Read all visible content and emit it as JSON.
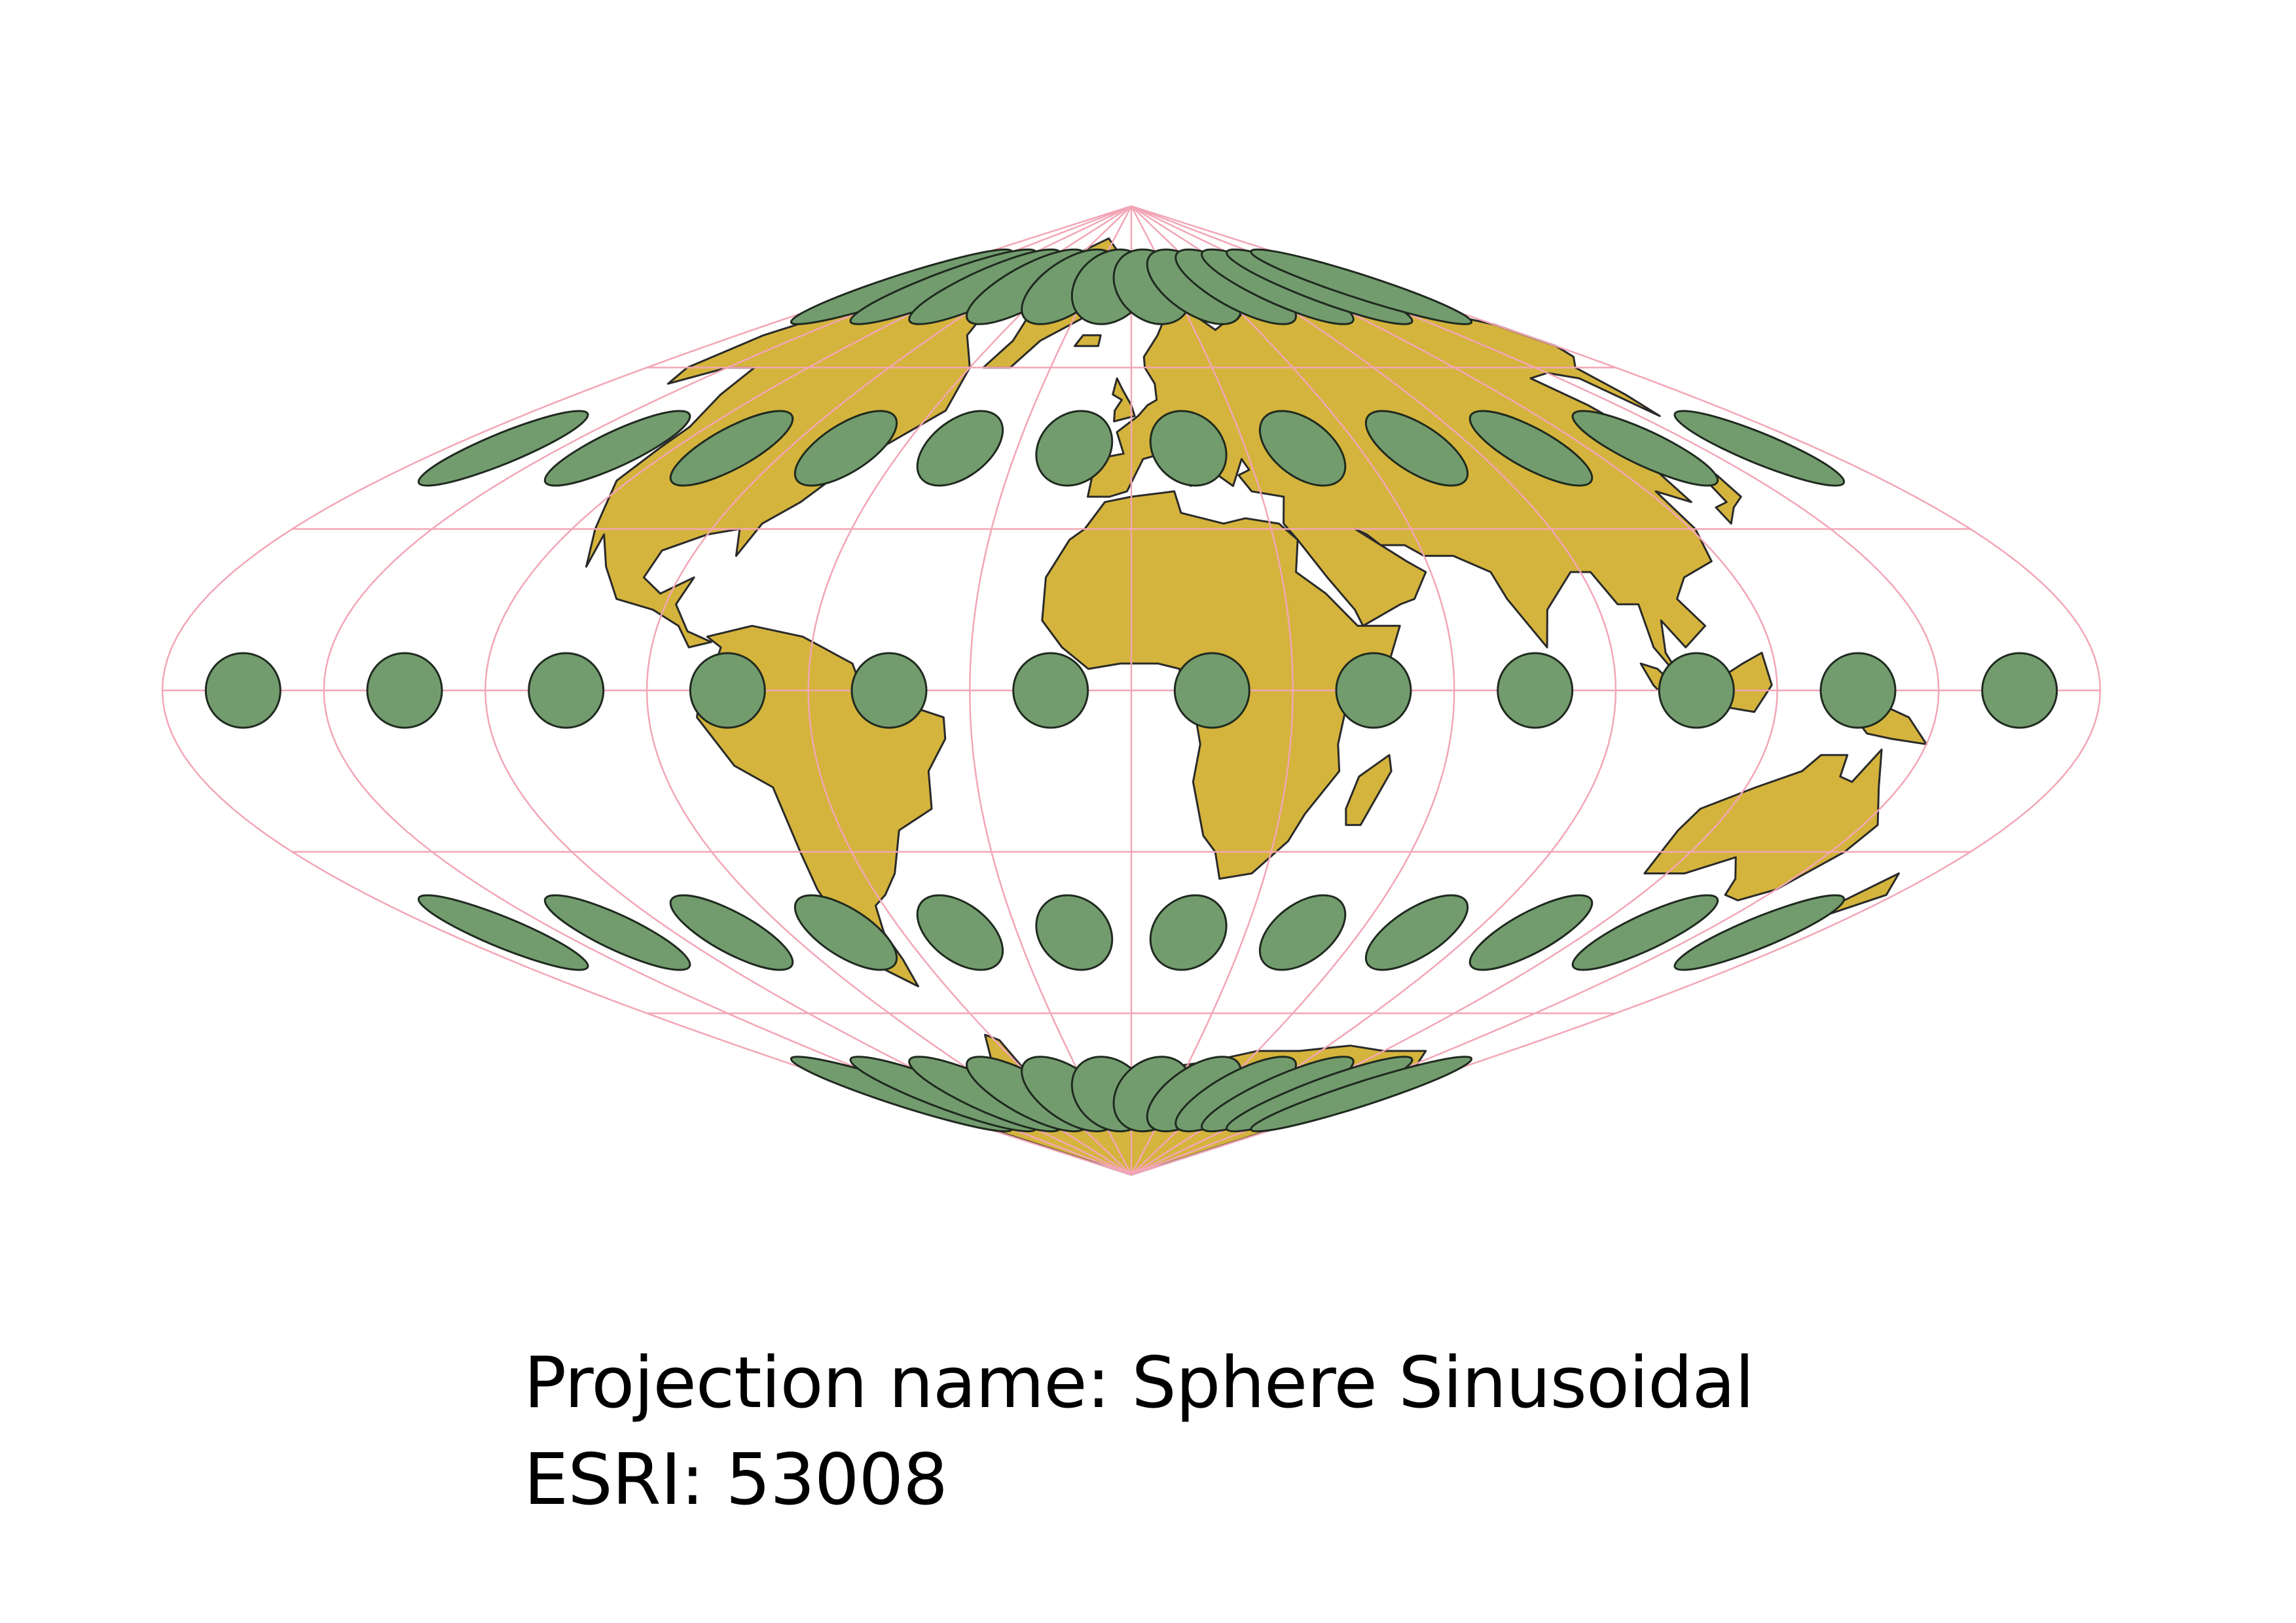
{
  "map": {
    "projection": "sinusoidal",
    "central_meridian": 0,
    "graticule_interval_deg": 30,
    "ellipse_latitudes": [
      -75,
      -45,
      0,
      45,
      75
    ],
    "ellipse_longitudes": [
      -165,
      -135,
      -105,
      -75,
      -45,
      -15,
      15,
      45,
      75,
      105,
      135,
      165
    ],
    "colors": {
      "land": "#D4B43C",
      "coastline": "#2a2a2a",
      "graticule": "#F2A6B6",
      "ellipse_fill": "#739C6E",
      "ellipse_stroke": "#1f2a1f",
      "background": "#ffffff"
    }
  },
  "caption": {
    "projection_line": "Projection name: Sphere Sinusoidal",
    "code_line": "ESRI: 53008"
  }
}
